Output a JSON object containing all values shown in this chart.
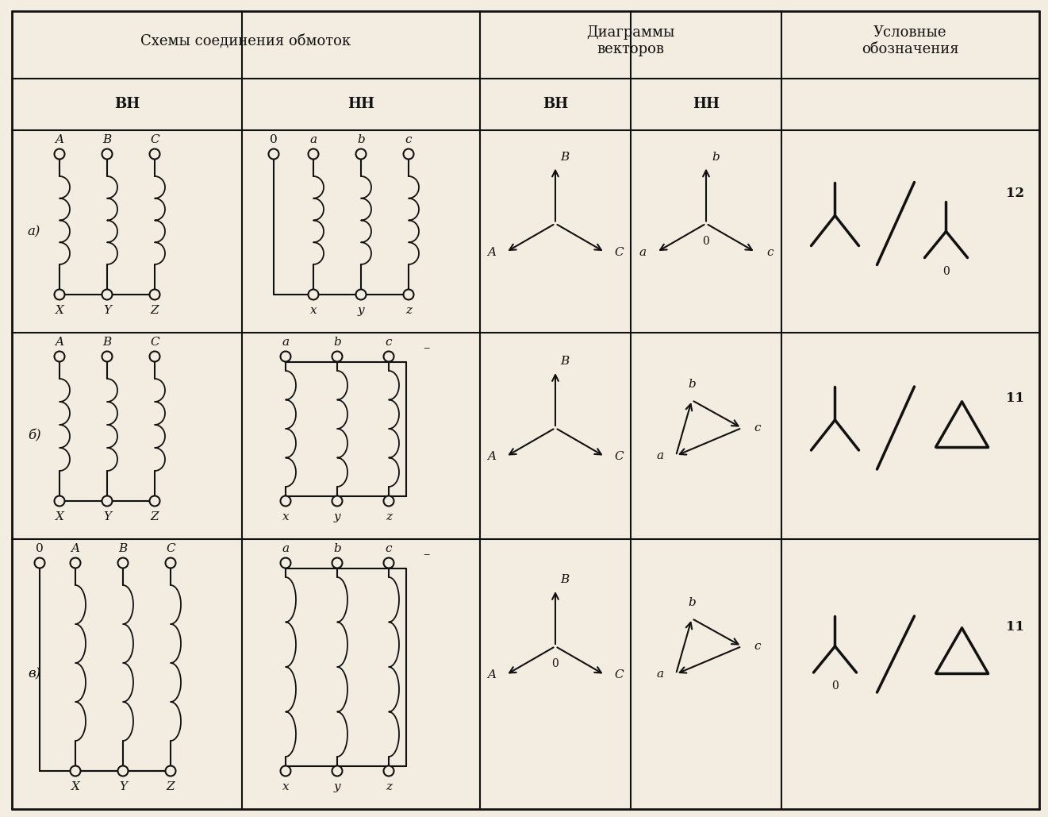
{
  "bg_color": "#f2ede0",
  "line_color": "#111111",
  "C0": 0.15,
  "C1": 3.05,
  "C2": 6.05,
  "C3": 7.95,
  "C4": 9.85,
  "C5": 13.1,
  "R0": 10.15,
  "R1": 9.3,
  "R2": 8.65,
  "R3": 6.1,
  "R4": 3.5,
  "R5": 0.1,
  "header_main": "Схемы соединения обмоток",
  "header_diag": "Диаграммы\nвекторов",
  "header_sym": "Условные\nобозначения",
  "sub_vh": "ВН",
  "sub_nh": "НН",
  "rows": [
    "а)",
    "б)",
    "в)"
  ],
  "groups": [
    "12",
    "11",
    "11"
  ]
}
